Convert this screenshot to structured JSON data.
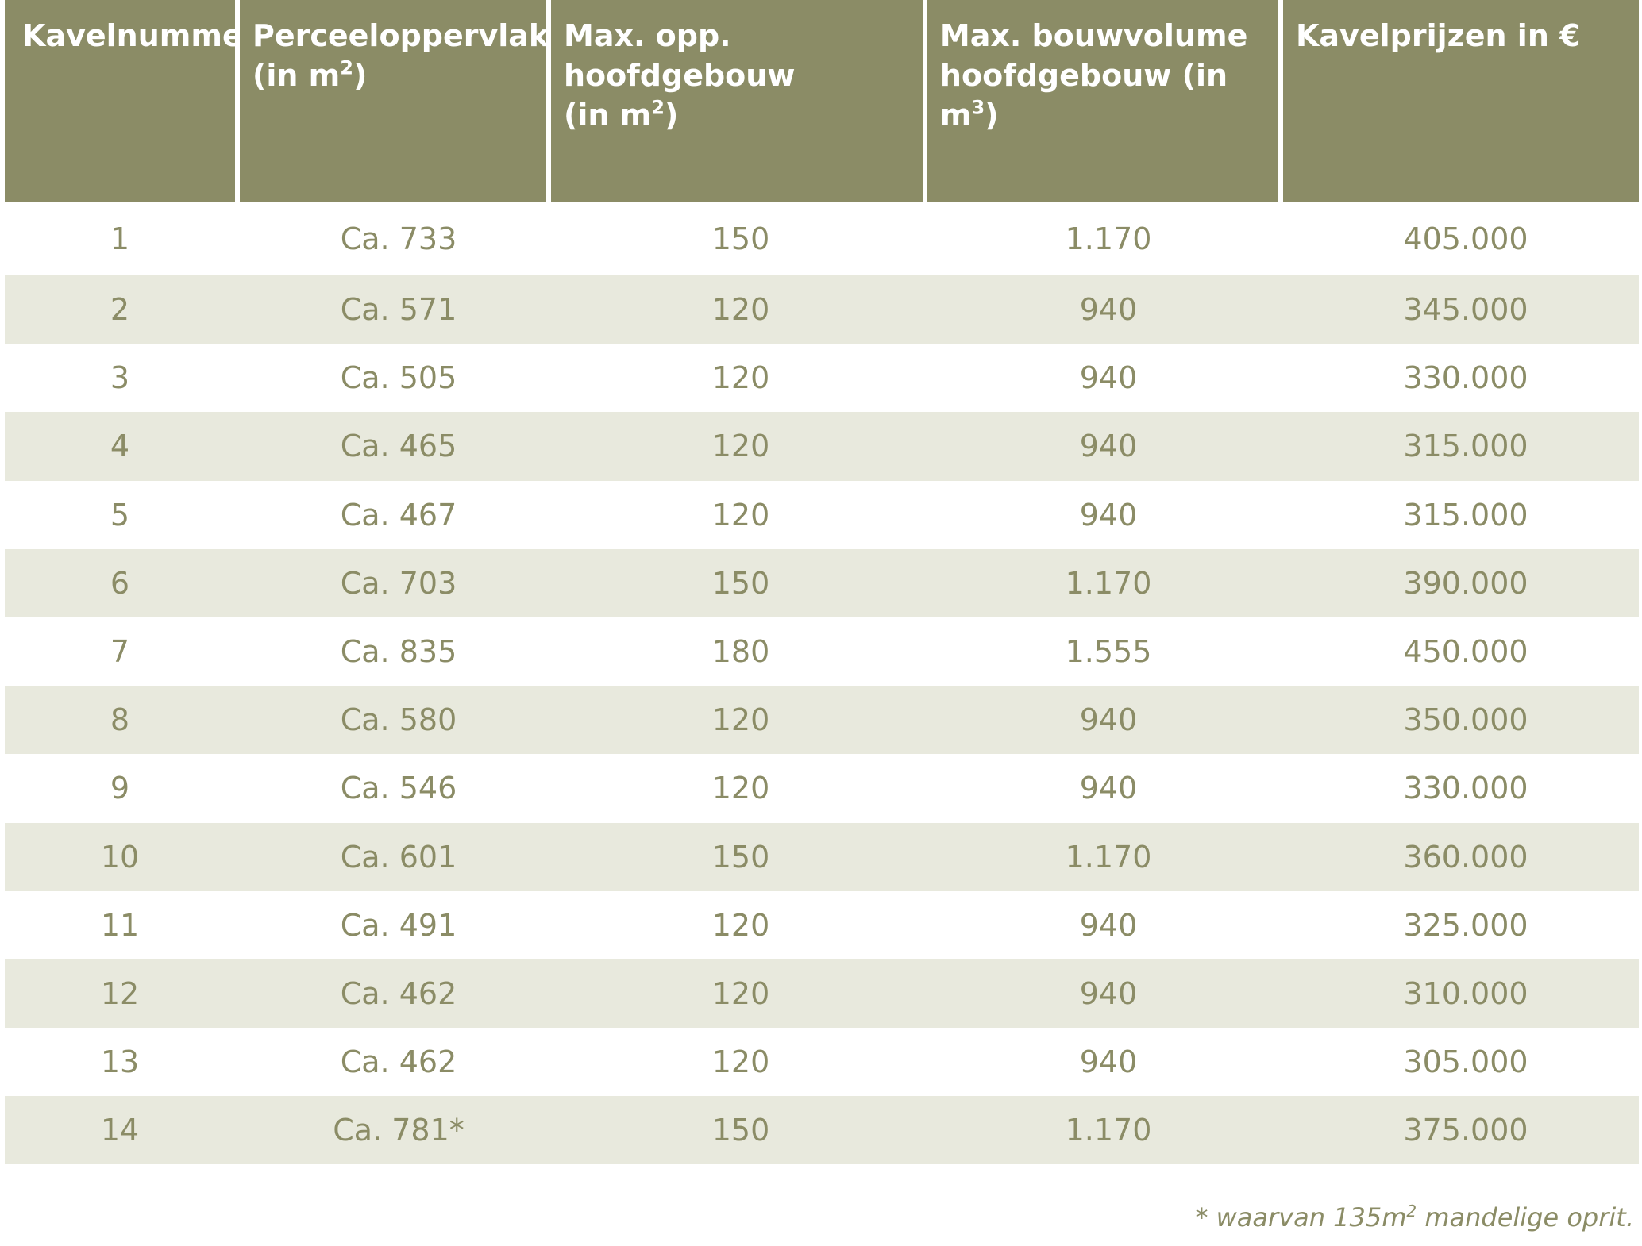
{
  "table": {
    "headers": [
      {
        "line1": "Kavelnummer",
        "line2": "",
        "sup": ""
      },
      {
        "line1": "Perceeloppervlakte",
        "line2": "(in m",
        "sup": "2",
        "after": ")"
      },
      {
        "line1": "Max. opp. hoofdgebouw",
        "line2": "(in m",
        "sup": "2",
        "after": ")"
      },
      {
        "line1": "Max. bouwvolume",
        "line2": "hoofdgebouw  (in m",
        "sup": "3",
        "after": ")"
      },
      {
        "line1": "Kavelprijzen in €",
        "line2": "",
        "sup": ""
      }
    ],
    "rows": [
      [
        "1",
        "Ca. 733",
        "150",
        "1.170",
        "405.000"
      ],
      [
        "2",
        "Ca. 571",
        "120",
        "940",
        "345.000"
      ],
      [
        "3",
        "Ca. 505",
        "120",
        "940",
        "330.000"
      ],
      [
        "4",
        "Ca. 465",
        "120",
        "940",
        "315.000"
      ],
      [
        "5",
        "Ca. 467",
        "120",
        "940",
        "315.000"
      ],
      [
        "6",
        "Ca. 703",
        "150",
        "1.170",
        "390.000"
      ],
      [
        "7",
        "Ca. 835",
        "180",
        "1.555",
        "450.000"
      ],
      [
        "8",
        "Ca. 580",
        "120",
        "940",
        "350.000"
      ],
      [
        "9",
        "Ca. 546",
        "120",
        "940",
        "330.000"
      ],
      [
        "10",
        "Ca. 601",
        "150",
        "1.170",
        "360.000"
      ],
      [
        "11",
        "Ca. 491",
        "120",
        "940",
        "325.000"
      ],
      [
        "12",
        "Ca. 462",
        "120",
        "940",
        "310.000"
      ],
      [
        "13",
        "Ca. 462",
        "120",
        "940",
        "305.000"
      ],
      [
        "14",
        "Ca. 781*",
        "150",
        "1.170",
        "375.000"
      ]
    ]
  },
  "footnote": {
    "before": "* waarvan 135m",
    "sup": "2",
    "after": " mandelige oprit."
  },
  "colors": {
    "header_bg": "#8b8c66",
    "stripe_bg": "#e8e9dd",
    "text": "#8b8c66"
  }
}
